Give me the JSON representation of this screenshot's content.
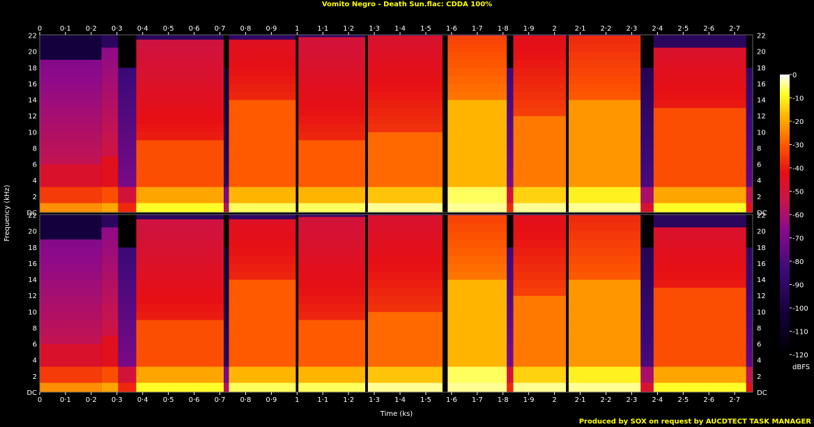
{
  "title": "Vomito Negro - Death Sun.flac: CDDA 100%",
  "footer": "Produced by SOX on request by AUCDTECT TASK MANAGER",
  "chart_data": {
    "type": "heatmap",
    "title": "Vomito Negro - Death Sun.flac: CDDA 100%",
    "xlabel": "Time (ks)",
    "ylabel": "Frequency (kHz)",
    "colorbar_label": "dBFS",
    "x_tick_labels": [
      "0",
      "0·1",
      "0·2",
      "0·3",
      "0·4",
      "0·5",
      "0·6",
      "0·7",
      "0·8",
      "0·9",
      "1",
      "1·1",
      "1·2",
      "1·3",
      "1·4",
      "1·5",
      "1·6",
      "1·7",
      "1·8",
      "1·9",
      "2",
      "2·1",
      "2·2",
      "2·3",
      "2·4",
      "2·5",
      "2·6",
      "2·7"
    ],
    "x_ticks": [
      0,
      0.1,
      0.2,
      0.3,
      0.4,
      0.5,
      0.6,
      0.7,
      0.8,
      0.9,
      1.0,
      1.1,
      1.2,
      1.3,
      1.4,
      1.5,
      1.6,
      1.7,
      1.8,
      1.9,
      2.0,
      2.1,
      2.2,
      2.3,
      2.4,
      2.5,
      2.6,
      2.7
    ],
    "xlim": [
      0,
      2.77
    ],
    "y_tick_labels": [
      "DC",
      "2",
      "4",
      "6",
      "8",
      "10",
      "12",
      "14",
      "16",
      "18",
      "20",
      "22"
    ],
    "y_ticks": [
      0,
      2,
      4,
      6,
      8,
      10,
      12,
      14,
      16,
      18,
      20,
      22
    ],
    "ylim": [
      0,
      22.05
    ],
    "channels": 2,
    "colorbar_tick_labels": [
      "0",
      "-10",
      "-20",
      "-30",
      "-40",
      "-50",
      "-60",
      "-70",
      "-80",
      "-90",
      "-100",
      "-110",
      "-120"
    ],
    "colorbar_ticks": [
      0,
      -10,
      -20,
      -30,
      -40,
      -50,
      -60,
      -70,
      -80,
      -90,
      -100,
      -110,
      -120
    ],
    "colorbar_range": [
      -120,
      0
    ],
    "colors": {
      "background": "#000000",
      "title": "#ffff00",
      "footer": "#ffff00",
      "text": "#ffffff"
    },
    "segments": [
      {
        "start": 0.0,
        "end": 0.24,
        "bg_db": -72,
        "body_db": -55,
        "cutoff_khz": 19.0,
        "knee_khz": 6.0
      },
      {
        "start": 0.24,
        "end": 0.305,
        "bg_db": -62,
        "body_db": -52,
        "cutoff_khz": 20.5,
        "knee_khz": 7.0
      },
      {
        "start": 0.305,
        "end": 0.375,
        "bg_db": -90,
        "body_db": -70,
        "cutoff_khz": 18.0,
        "knee_khz": 3.0
      },
      {
        "start": 0.375,
        "end": 0.715,
        "bg_db": -62,
        "body_db": -40,
        "cutoff_khz": 21.5,
        "knee_khz": 9.5
      },
      {
        "start": 0.715,
        "end": 0.735,
        "bg_db": -105,
        "body_db": -90,
        "cutoff_khz": 18.0,
        "knee_khz": 2.0
      },
      {
        "start": 0.735,
        "end": 0.995,
        "bg_db": -60,
        "body_db": -38,
        "cutoff_khz": 21.5,
        "knee_khz": 14.0
      },
      {
        "start": 0.995,
        "end": 1.005,
        "bg_db": -110,
        "body_db": -110,
        "cutoff_khz": 0.5,
        "knee_khz": 0.2
      },
      {
        "start": 1.005,
        "end": 1.265,
        "bg_db": -58,
        "body_db": -38,
        "cutoff_khz": 21.8,
        "knee_khz": 9.0
      },
      {
        "start": 1.265,
        "end": 1.275,
        "bg_db": -110,
        "body_db": -110,
        "cutoff_khz": 0.5,
        "knee_khz": 0.2
      },
      {
        "start": 1.275,
        "end": 1.565,
        "bg_db": -56,
        "body_db": -36,
        "cutoff_khz": 22.0,
        "knee_khz": 10.0
      },
      {
        "start": 1.565,
        "end": 1.585,
        "bg_db": -110,
        "body_db": -110,
        "cutoff_khz": 0.5,
        "knee_khz": 0.2
      },
      {
        "start": 1.585,
        "end": 1.815,
        "bg_db": -38,
        "body_db": -26,
        "cutoff_khz": 22.0,
        "knee_khz": 14.0
      },
      {
        "start": 1.815,
        "end": 1.84,
        "bg_db": -90,
        "body_db": -70,
        "cutoff_khz": 18.0,
        "knee_khz": 3.0
      },
      {
        "start": 1.84,
        "end": 2.045,
        "bg_db": -50,
        "body_db": -34,
        "cutoff_khz": 22.0,
        "knee_khz": 12.0
      },
      {
        "start": 2.045,
        "end": 2.055,
        "bg_db": -110,
        "body_db": -110,
        "cutoff_khz": 0.5,
        "knee_khz": 0.2
      },
      {
        "start": 2.055,
        "end": 2.335,
        "bg_db": -44,
        "body_db": -30,
        "cutoff_khz": 22.0,
        "knee_khz": 14.0
      },
      {
        "start": 2.335,
        "end": 2.385,
        "bg_db": -95,
        "body_db": -80,
        "cutoff_khz": 18.0,
        "knee_khz": 2.5
      },
      {
        "start": 2.385,
        "end": 2.745,
        "bg_db": -62,
        "body_db": -40,
        "cutoff_khz": 20.5,
        "knee_khz": 13.0
      },
      {
        "start": 2.745,
        "end": 2.77,
        "bg_db": -90,
        "body_db": -75,
        "cutoff_khz": 18.0,
        "knee_khz": 2.0
      }
    ]
  }
}
